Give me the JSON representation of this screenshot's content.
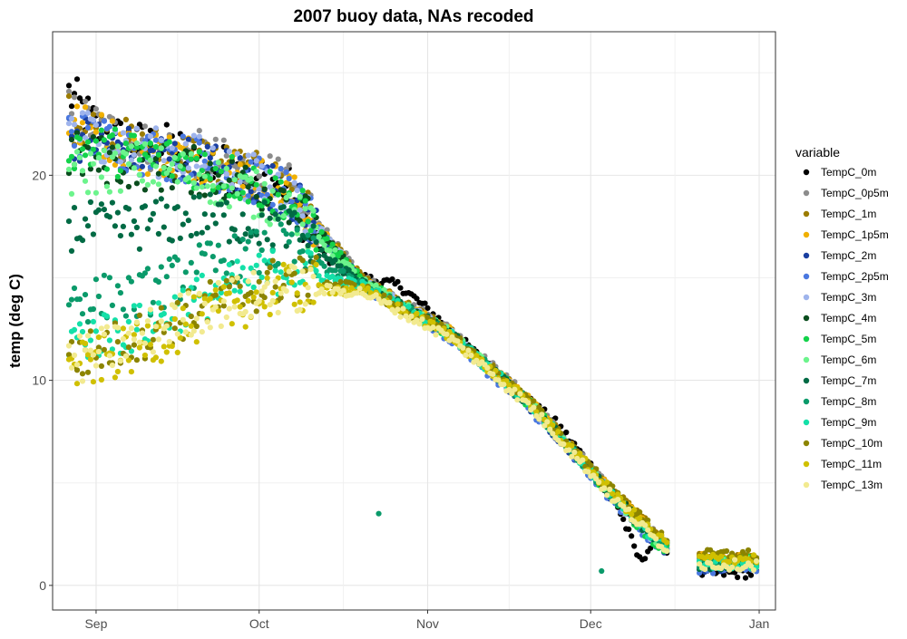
{
  "chart_data": {
    "type": "scatter",
    "title": "2007 buoy data, NAs recoded",
    "xlabel": "",
    "ylabel": "temp (deg C)",
    "x_axis": {
      "type": "date",
      "range": [
        "2007-08-24",
        "2008-01-04"
      ],
      "ticks": [
        {
          "date": "2007-09-01",
          "label": "Sep"
        },
        {
          "date": "2007-10-01",
          "label": "Oct"
        },
        {
          "date": "2007-11-01",
          "label": "Nov"
        },
        {
          "date": "2007-12-01",
          "label": "Dec"
        },
        {
          "date": "2008-01-01",
          "label": "Jan"
        }
      ]
    },
    "y_axis": {
      "range": [
        -1.2,
        27
      ],
      "ticks": [
        0,
        10,
        20
      ],
      "minor_ticks": [
        5,
        15,
        25
      ]
    },
    "grid": true,
    "legend": {
      "title": "variable",
      "position": "right",
      "entries": [
        {
          "name": "TempC_0m",
          "color": "#000000"
        },
        {
          "name": "TempC_0p5m",
          "color": "#8c8c8c"
        },
        {
          "name": "TempC_1m",
          "color": "#9c7c00"
        },
        {
          "name": "TempC_1p5m",
          "color": "#f0b000"
        },
        {
          "name": "TempC_2m",
          "color": "#1a3fa0"
        },
        {
          "name": "TempC_2p5m",
          "color": "#4a78e0"
        },
        {
          "name": "TempC_3m",
          "color": "#9fb4ec"
        },
        {
          "name": "TempC_4m",
          "color": "#0a4d1e"
        },
        {
          "name": "TempC_5m",
          "color": "#13d24a"
        },
        {
          "name": "TempC_6m",
          "color": "#6cf48c"
        },
        {
          "name": "TempC_7m",
          "color": "#006a44"
        },
        {
          "name": "TempC_8m",
          "color": "#0a9a6a"
        },
        {
          "name": "TempC_9m",
          "color": "#14e0a8"
        },
        {
          "name": "TempC_10m",
          "color": "#8c8400"
        },
        {
          "name": "TempC_11m",
          "color": "#d0c000"
        },
        {
          "name": "TempC_13m",
          "color": "#f2ea90"
        }
      ]
    },
    "series": [
      {
        "name": "TempC_0m",
        "x": [
          "2007-08-27",
          "2007-09-02",
          "2007-09-08",
          "2007-09-15",
          "2007-09-22",
          "2007-09-29",
          "2007-10-06",
          "2007-10-13",
          "2007-10-20",
          "2007-10-27",
          "2007-11-05",
          "2007-11-15",
          "2007-11-25",
          "2007-12-05",
          "2007-12-10",
          "2007-12-13",
          "2007-12-20",
          "2007-12-27",
          "2008-01-01"
        ],
        "y": [
          24.0,
          22.0,
          21.5,
          21.3,
          20.5,
          20.0,
          19.5,
          16.0,
          15.0,
          14.6,
          12.5,
          10.0,
          7.8,
          4.5,
          1.2,
          2.2,
          0.6,
          0.6,
          0.6
        ]
      },
      {
        "name": "TempC_0p5m",
        "x": [
          "2007-08-27",
          "2007-09-08",
          "2007-09-20",
          "2007-10-06",
          "2007-10-20",
          "2007-11-05",
          "2007-11-20",
          "2007-12-05",
          "2007-12-13",
          "2007-12-20",
          "2008-01-01"
        ],
        "y": [
          23.0,
          21.5,
          21.0,
          19.5,
          15.0,
          12.5,
          9.0,
          4.5,
          2.4,
          1.2,
          1.2
        ]
      },
      {
        "name": "TempC_1m",
        "x": [
          "2007-08-27",
          "2007-09-08",
          "2007-09-20",
          "2007-10-06",
          "2007-10-20",
          "2007-11-05",
          "2007-11-20",
          "2007-12-05",
          "2007-12-13",
          "2007-12-20",
          "2008-01-01"
        ],
        "y": [
          22.8,
          21.4,
          20.9,
          19.4,
          14.9,
          12.4,
          8.9,
          4.6,
          2.6,
          1.4,
          1.4
        ]
      },
      {
        "name": "TempC_1p5m",
        "x": [
          "2007-08-27",
          "2007-09-08",
          "2007-09-20",
          "2007-10-06",
          "2007-10-20",
          "2007-11-05",
          "2007-11-20",
          "2007-12-05",
          "2007-12-13",
          "2007-12-20",
          "2008-01-01"
        ],
        "y": [
          22.6,
          21.3,
          20.8,
          19.3,
          14.8,
          12.4,
          8.9,
          4.5,
          2.4,
          1.3,
          1.3
        ]
      },
      {
        "name": "TempC_2m",
        "x": [
          "2007-08-27",
          "2007-09-08",
          "2007-09-20",
          "2007-10-06",
          "2007-10-20",
          "2007-11-05",
          "2007-11-20",
          "2007-12-05",
          "2007-12-13",
          "2007-12-20",
          "2008-01-01"
        ],
        "y": [
          22.0,
          21.2,
          20.7,
          19.2,
          14.7,
          12.2,
          8.7,
          4.3,
          2.1,
          0.9,
          0.9
        ]
      },
      {
        "name": "TempC_2p5m",
        "x": [
          "2007-08-27",
          "2007-09-08",
          "2007-09-20",
          "2007-10-06",
          "2007-10-20",
          "2007-11-05",
          "2007-11-20",
          "2007-12-05",
          "2007-12-13",
          "2007-12-20",
          "2008-01-01"
        ],
        "y": [
          22.2,
          21.2,
          20.7,
          19.2,
          14.6,
          12.1,
          8.6,
          4.2,
          2.0,
          0.8,
          0.8
        ]
      },
      {
        "name": "TempC_3m",
        "x": [
          "2007-08-27",
          "2007-09-08",
          "2007-09-20",
          "2007-10-06",
          "2007-10-20",
          "2007-11-05",
          "2007-11-20",
          "2007-12-05",
          "2007-12-13",
          "2007-12-20",
          "2008-01-01"
        ],
        "y": [
          22.4,
          21.3,
          20.8,
          19.3,
          14.8,
          12.3,
          8.8,
          4.4,
          2.2,
          1.0,
          1.0
        ]
      },
      {
        "name": "TempC_4m",
        "x": [
          "2007-08-27",
          "2007-09-08",
          "2007-09-20",
          "2007-10-06",
          "2007-10-20",
          "2007-11-05",
          "2007-11-20",
          "2007-12-05",
          "2007-12-13",
          "2007-12-20",
          "2008-01-01"
        ],
        "y": [
          21.0,
          20.5,
          20.2,
          19.0,
          14.8,
          12.3,
          8.8,
          4.4,
          2.3,
          1.1,
          1.1
        ]
      },
      {
        "name": "TempC_5m",
        "x": [
          "2007-08-27",
          "2007-09-08",
          "2007-09-20",
          "2007-10-06",
          "2007-10-20",
          "2007-11-05",
          "2007-11-20",
          "2007-12-05",
          "2007-12-13",
          "2007-12-20",
          "2008-01-01"
        ],
        "y": [
          21.5,
          21.0,
          20.5,
          19.0,
          14.8,
          12.3,
          8.8,
          4.4,
          2.0,
          1.2,
          1.2
        ]
      },
      {
        "name": "TempC_6m",
        "x": [
          "2007-08-27",
          "2007-09-08",
          "2007-09-20",
          "2007-10-06",
          "2007-10-20",
          "2007-11-05",
          "2007-11-20",
          "2007-12-05",
          "2007-12-13",
          "2007-12-20",
          "2008-01-01"
        ],
        "y": [
          20.0,
          20.5,
          20.0,
          18.5,
          14.8,
          12.3,
          8.8,
          4.4,
          2.2,
          1.1,
          1.1
        ]
      },
      {
        "name": "TempC_7m",
        "x": [
          "2007-08-27",
          "2007-09-08",
          "2007-09-20",
          "2007-10-06",
          "2007-10-20",
          "2007-11-05",
          "2007-11-20",
          "2007-12-05",
          "2007-12-13",
          "2007-12-20",
          "2008-01-01"
        ],
        "y": [
          17.5,
          17.5,
          18.0,
          17.5,
          14.7,
          12.3,
          8.8,
          4.4,
          2.2,
          1.0,
          1.0
        ]
      },
      {
        "name": "TempC_8m",
        "x": [
          "2007-08-27",
          "2007-09-08",
          "2007-09-20",
          "2007-10-06",
          "2007-10-20",
          "2007-11-05",
          "2007-11-20",
          "2007-12-05",
          "2007-12-13",
          "2007-12-20",
          "2008-01-01"
        ],
        "y": [
          14.0,
          14.0,
          15.5,
          16.5,
          14.6,
          12.3,
          8.8,
          4.4,
          2.2,
          1.0,
          1.0
        ]
      },
      {
        "name": "TempC_9m",
        "x": [
          "2007-08-27",
          "2007-09-08",
          "2007-09-20",
          "2007-10-06",
          "2007-10-20",
          "2007-11-05",
          "2007-11-20",
          "2007-12-05",
          "2007-12-13",
          "2007-12-20",
          "2008-01-01"
        ],
        "y": [
          12.0,
          12.5,
          14.0,
          15.5,
          14.6,
          12.3,
          8.8,
          4.4,
          2.2,
          1.0,
          1.0
        ]
      },
      {
        "name": "TempC_10m",
        "x": [
          "2007-08-27",
          "2007-09-08",
          "2007-09-20",
          "2007-10-06",
          "2007-10-20",
          "2007-11-05",
          "2007-11-20",
          "2007-12-05",
          "2007-12-13",
          "2007-12-20",
          "2008-01-01"
        ],
        "y": [
          11.0,
          12.0,
          13.5,
          15.0,
          14.5,
          12.3,
          8.9,
          4.6,
          2.6,
          1.5,
          1.5
        ]
      },
      {
        "name": "TempC_11m",
        "x": [
          "2007-08-27",
          "2007-09-08",
          "2007-09-20",
          "2007-10-06",
          "2007-10-20",
          "2007-11-05",
          "2007-11-20",
          "2007-12-05",
          "2007-12-13",
          "2007-12-20",
          "2008-01-01"
        ],
        "y": [
          10.5,
          11.5,
          13.0,
          14.5,
          14.4,
          12.2,
          8.8,
          4.5,
          2.4,
          1.3,
          1.3
        ]
      },
      {
        "name": "TempC_13m",
        "x": [
          "2007-08-27",
          "2007-09-08",
          "2007-09-20",
          "2007-10-06",
          "2007-10-20",
          "2007-11-05",
          "2007-11-20",
          "2007-12-05",
          "2007-12-13",
          "2007-12-20",
          "2008-01-01"
        ],
        "y": [
          10.8,
          12.0,
          13.5,
          14.5,
          14.3,
          12.1,
          8.7,
          4.3,
          2.2,
          1.0,
          1.0
        ]
      }
    ],
    "outliers": [
      {
        "series": "TempC_8m",
        "x": "2007-10-23",
        "y": 3.5
      },
      {
        "series": "TempC_8m",
        "x": "2007-12-03",
        "y": 0.7
      }
    ]
  }
}
